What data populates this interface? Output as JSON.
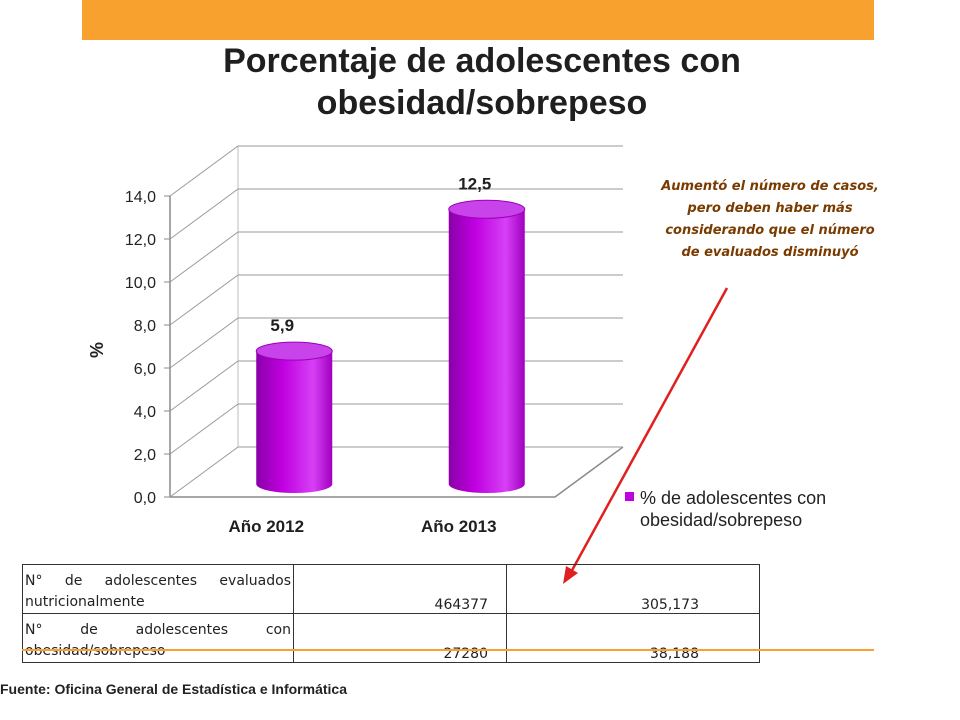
{
  "title": "Porcentaje de adolescentes con obesidad/sobrepeso",
  "annotation": "Aumentó el número de casos, pero deben haber más considerando que el número de evaluados disminuyó",
  "legend_label": "% de adolescentes con obesidad/sobrepeso",
  "source": "Fuente:  Oficina General de Estadística e Informática",
  "colors": {
    "bar": "#c000e0",
    "top_bar": "#f9a12e",
    "arrow": "#e02020"
  },
  "chart_data": {
    "type": "bar",
    "style": "3d-cylinder",
    "categories": [
      "Año 2012",
      "Año 2013"
    ],
    "series": [
      {
        "name": "% de adolescentes con obesidad/sobrepeso",
        "values": [
          5.9,
          12.5
        ],
        "color": "#c000e0"
      }
    ],
    "data_labels": [
      "5,9",
      "12,5"
    ],
    "ylabel": "%",
    "ylim": [
      0,
      14
    ],
    "yticks": [
      0,
      2,
      4,
      6,
      8,
      10,
      12,
      14
    ],
    "ytick_labels": [
      "0,0",
      "2,0",
      "4,0",
      "6,0",
      "8,0",
      "10,0",
      "12,0",
      "14,0"
    ],
    "grid": true,
    "legend_position": "right"
  },
  "table": {
    "rows": [
      {
        "label": "N° de adolescentes evaluados nutricionalmente",
        "v2012": "464377",
        "v2013": "305,173"
      },
      {
        "label": "N° de adolescentes con obesidad/sobrepeso",
        "v2012": "27280",
        "v2013": "38,188"
      }
    ]
  }
}
